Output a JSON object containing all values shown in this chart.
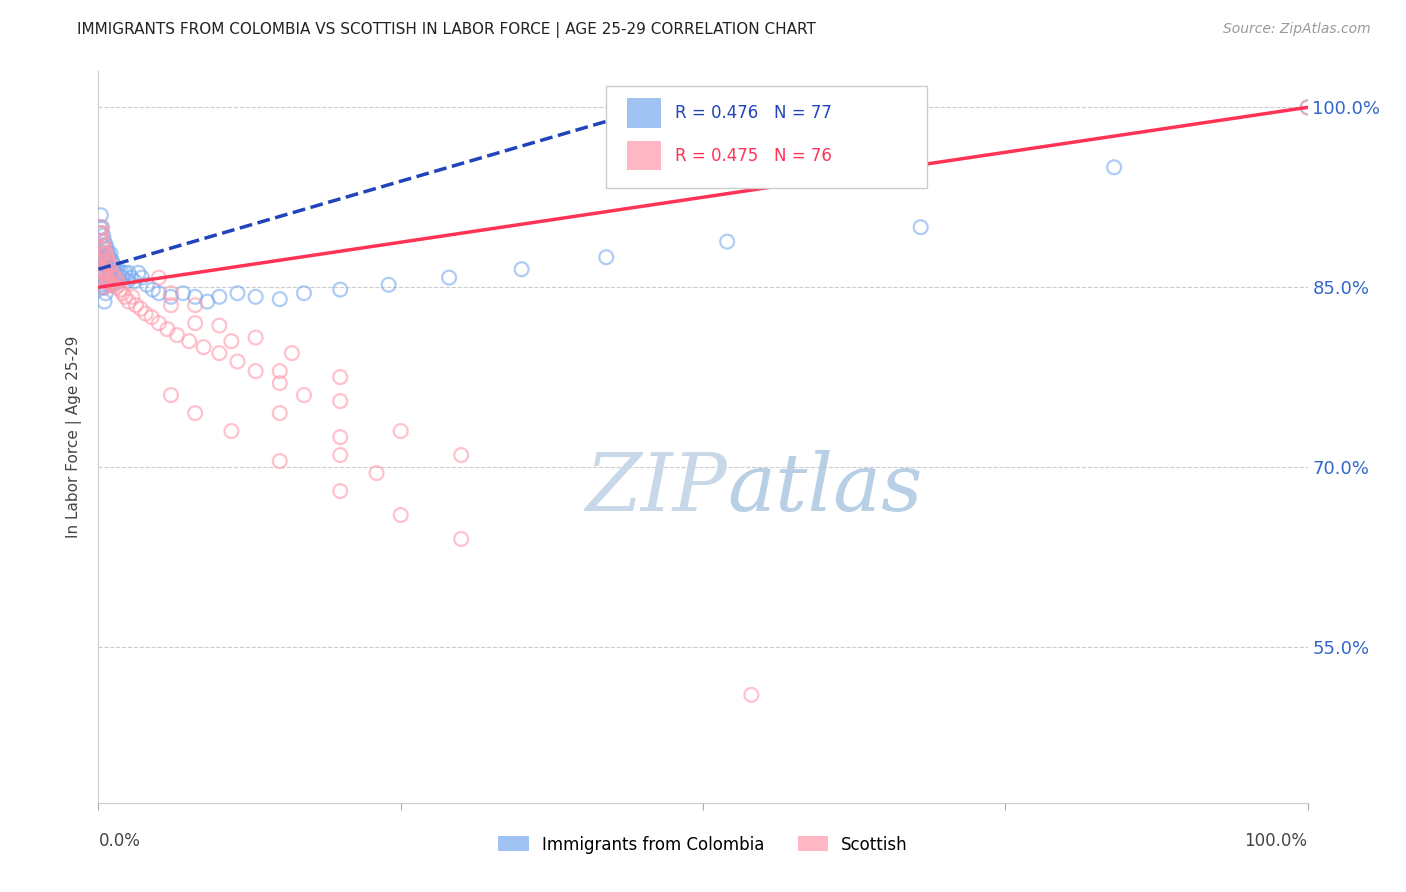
{
  "title": "IMMIGRANTS FROM COLOMBIA VS SCOTTISH IN LABOR FORCE | AGE 25-29 CORRELATION CHART",
  "source": "Source: ZipAtlas.com",
  "ylabel": "In Labor Force | Age 25-29",
  "legend_label1": "Immigrants from Colombia",
  "legend_label2": "Scottish",
  "R1": 0.476,
  "N1": 77,
  "R2": 0.475,
  "N2": 76,
  "color_blue": "#7aaaee",
  "color_pink": "#ff9aaa",
  "color_blue_line": "#2244bb",
  "color_pink_line": "#ff3355",
  "watermark_text": "ZIPatlas",
  "watermark_color": "#dce8f5",
  "xlim": [
    0.0,
    1.0
  ],
  "ylim": [
    0.42,
    1.03
  ],
  "yticks": [
    0.55,
    0.7,
    0.85,
    1.0
  ],
  "ytick_labels": [
    "55.0%",
    "70.0%",
    "85.0%",
    "100.0%"
  ],
  "blue_x": [
    0.001,
    0.001,
    0.001,
    0.002,
    0.002,
    0.002,
    0.002,
    0.003,
    0.003,
    0.003,
    0.003,
    0.003,
    0.004,
    0.004,
    0.004,
    0.004,
    0.005,
    0.005,
    0.005,
    0.005,
    0.005,
    0.006,
    0.006,
    0.006,
    0.006,
    0.007,
    0.007,
    0.007,
    0.008,
    0.008,
    0.008,
    0.009,
    0.009,
    0.01,
    0.01,
    0.01,
    0.011,
    0.011,
    0.012,
    0.012,
    0.013,
    0.013,
    0.014,
    0.015,
    0.016,
    0.017,
    0.018,
    0.019,
    0.02,
    0.022,
    0.024,
    0.025,
    0.027,
    0.03,
    0.033,
    0.036,
    0.04,
    0.045,
    0.05,
    0.06,
    0.07,
    0.08,
    0.09,
    0.1,
    0.115,
    0.13,
    0.15,
    0.17,
    0.2,
    0.24,
    0.29,
    0.35,
    0.42,
    0.52,
    0.68,
    0.84,
    1.0
  ],
  "blue_y": [
    0.9,
    0.88,
    0.87,
    0.91,
    0.895,
    0.875,
    0.86,
    0.9,
    0.885,
    0.875,
    0.862,
    0.85,
    0.893,
    0.878,
    0.865,
    0.852,
    0.888,
    0.875,
    0.862,
    0.85,
    0.838,
    0.885,
    0.872,
    0.858,
    0.845,
    0.882,
    0.868,
    0.855,
    0.878,
    0.865,
    0.852,
    0.875,
    0.862,
    0.878,
    0.865,
    0.852,
    0.872,
    0.858,
    0.87,
    0.855,
    0.867,
    0.853,
    0.862,
    0.858,
    0.865,
    0.86,
    0.855,
    0.862,
    0.858,
    0.862,
    0.855,
    0.862,
    0.858,
    0.855,
    0.862,
    0.858,
    0.852,
    0.848,
    0.845,
    0.842,
    0.845,
    0.842,
    0.838,
    0.842,
    0.845,
    0.842,
    0.84,
    0.845,
    0.848,
    0.852,
    0.858,
    0.865,
    0.875,
    0.888,
    0.9,
    0.95,
    1.0
  ],
  "pink_x": [
    0.001,
    0.001,
    0.002,
    0.002,
    0.002,
    0.003,
    0.003,
    0.003,
    0.004,
    0.004,
    0.004,
    0.005,
    0.005,
    0.005,
    0.006,
    0.006,
    0.007,
    0.007,
    0.008,
    0.008,
    0.009,
    0.009,
    0.01,
    0.01,
    0.011,
    0.012,
    0.013,
    0.014,
    0.015,
    0.016,
    0.018,
    0.02,
    0.022,
    0.025,
    0.028,
    0.031,
    0.035,
    0.039,
    0.044,
    0.05,
    0.057,
    0.065,
    0.075,
    0.087,
    0.1,
    0.115,
    0.13,
    0.15,
    0.17,
    0.05,
    0.06,
    0.08,
    0.1,
    0.13,
    0.16,
    0.2,
    0.06,
    0.08,
    0.11,
    0.15,
    0.2,
    0.25,
    0.3,
    0.06,
    0.08,
    0.11,
    0.15,
    0.2,
    0.25,
    0.3,
    0.2,
    0.23,
    0.15,
    0.2,
    0.54,
    1.0
  ],
  "pink_y": [
    0.895,
    0.875,
    0.9,
    0.882,
    0.865,
    0.895,
    0.878,
    0.862,
    0.888,
    0.87,
    0.855,
    0.882,
    0.865,
    0.85,
    0.878,
    0.862,
    0.875,
    0.858,
    0.872,
    0.855,
    0.87,
    0.853,
    0.868,
    0.852,
    0.862,
    0.858,
    0.852,
    0.858,
    0.85,
    0.855,
    0.848,
    0.845,
    0.842,
    0.838,
    0.842,
    0.835,
    0.832,
    0.828,
    0.825,
    0.82,
    0.815,
    0.81,
    0.805,
    0.8,
    0.795,
    0.788,
    0.78,
    0.77,
    0.76,
    0.858,
    0.845,
    0.835,
    0.818,
    0.808,
    0.795,
    0.775,
    0.835,
    0.82,
    0.805,
    0.78,
    0.755,
    0.73,
    0.71,
    0.76,
    0.745,
    0.73,
    0.705,
    0.68,
    0.66,
    0.64,
    0.725,
    0.695,
    0.745,
    0.71,
    0.51,
    1.0
  ]
}
